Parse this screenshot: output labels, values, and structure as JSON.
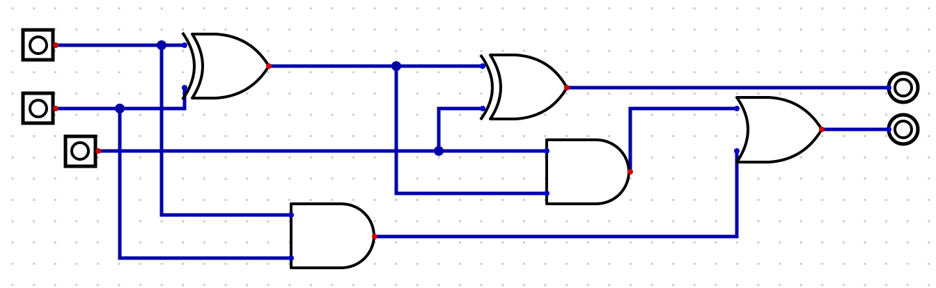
{
  "diagram": {
    "type": "logic-circuit",
    "components": {
      "inputs": [
        "input-1",
        "input-2",
        "input-3"
      ],
      "outputs": [
        "output-1",
        "output-2"
      ],
      "gates": [
        {
          "id": "xor-1",
          "kind": "XOR"
        },
        {
          "id": "xor-2",
          "kind": "XOR"
        },
        {
          "id": "and-1",
          "kind": "AND"
        },
        {
          "id": "and-2",
          "kind": "AND"
        },
        {
          "id": "or-1",
          "kind": "OR"
        }
      ]
    },
    "colors": {
      "wire": "#0000aa",
      "gate_stroke": "#000000",
      "output_pin": "#cc0000",
      "input_pin": "#0000cc",
      "grid_dot": "#c8c8c8"
    }
  }
}
